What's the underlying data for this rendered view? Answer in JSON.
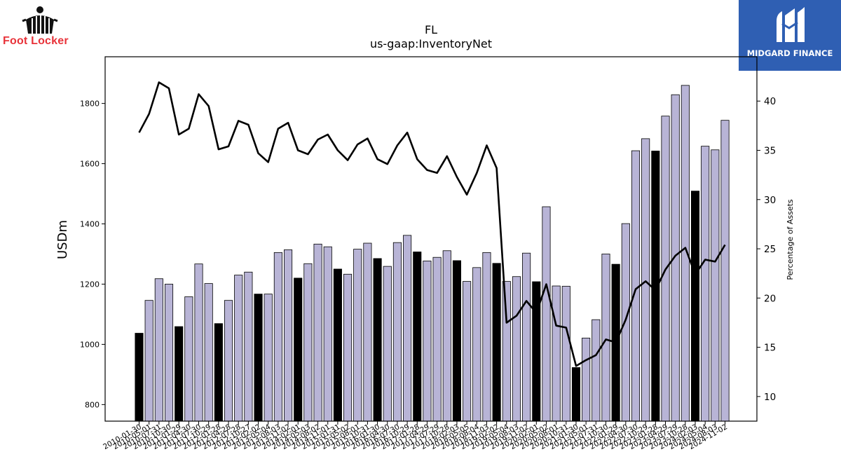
{
  "brand_left": {
    "name": "Foot Locker",
    "icon": "referee-figure-icon",
    "color": "#e8333a"
  },
  "brand_right": {
    "name": "MIDGARD FINANCE",
    "icon": "midgard-m-icon",
    "background": "#2f5fb3"
  },
  "chart_data": {
    "type": "bar",
    "title": "FL",
    "subtitle": "us-gaap:InventoryNet",
    "ylabel": "USDm",
    "y2label": "Percentage of Assets",
    "ylim": [
      745,
      1955
    ],
    "y2lim": [
      7.5,
      44.5
    ],
    "yticks": [
      800,
      1000,
      1200,
      1400,
      1600,
      1800
    ],
    "y2ticks": [
      10,
      15,
      20,
      25,
      30,
      35,
      40
    ],
    "grid": false,
    "colors": {
      "bar_default": "#b8b4d6",
      "bar_highlight": "#000000",
      "line": "#000000"
    },
    "categories": [
      "2010-01-30",
      "2010-05-01",
      "2010-07-31",
      "2010-10-30",
      "2011-01-29",
      "2011-04-30",
      "2011-07-30",
      "2011-10-29",
      "2012-01-28",
      "2012-04-28",
      "2012-07-28",
      "2012-10-27",
      "2013-02-02",
      "2013-05-04",
      "2013-08-03",
      "2013-11-02",
      "2014-02-01",
      "2014-05-03",
      "2014-08-02",
      "2014-11-01",
      "2015-01-31",
      "2015-05-02",
      "2015-08-01",
      "2015-10-31",
      "2016-01-30",
      "2016-04-30",
      "2016-07-30",
      "2016-10-29",
      "2017-01-28",
      "2017-04-29",
      "2017-07-29",
      "2017-10-28",
      "2018-02-03",
      "2018-05-05",
      "2018-08-04",
      "2018-11-03",
      "2019-02-02",
      "2019-05-04",
      "2019-08-03",
      "2019-11-02",
      "2020-02-01",
      "2020-05-02",
      "2020-08-01",
      "2020-10-31",
      "2021-01-30",
      "2021-05-01",
      "2021-07-31",
      "2021-10-30",
      "2022-01-29",
      "2022-04-30",
      "2022-07-30",
      "2022-10-29",
      "2023-01-28",
      "2023-04-29",
      "2023-07-29",
      "2023-10-28",
      "2024-02-03",
      "2024-05-04",
      "2024-08-03",
      "2024-11-02"
    ],
    "series": [
      {
        "values": [
          1037,
          1146,
          1218,
          1200,
          1059,
          1158,
          1267,
          1202,
          1069,
          1146,
          1230,
          1240,
          1167,
          1167,
          1305,
          1314,
          1220,
          1268,
          1333,
          1324,
          1250,
          1233,
          1316,
          1336,
          1285,
          1259,
          1338,
          1362,
          1307,
          1277,
          1289,
          1311,
          1278,
          1209,
          1255,
          1305,
          1269,
          1209,
          1225,
          1303,
          1208,
          1457,
          1194,
          1193,
          923,
          1021,
          1082,
          1300,
          1266,
          1401,
          1643,
          1683,
          1642,
          1758,
          1829,
          1860,
          1509,
          1658,
          1646,
          1744
        ],
        "highlight": [
          true,
          false,
          false,
          false,
          true,
          false,
          false,
          false,
          true,
          false,
          false,
          false,
          true,
          false,
          false,
          false,
          true,
          false,
          false,
          false,
          true,
          false,
          false,
          false,
          true,
          false,
          false,
          false,
          true,
          false,
          false,
          false,
          true,
          false,
          false,
          false,
          true,
          false,
          false,
          false,
          true,
          false,
          false,
          false,
          true,
          false,
          false,
          false,
          true,
          false,
          false,
          false,
          true,
          false,
          false,
          false,
          true,
          false,
          false,
          false
        ]
      },
      {
        "type": "line",
        "axis": "right",
        "values": [
          36.8,
          38.7,
          41.9,
          41.3,
          36.6,
          37.2,
          40.7,
          39.5,
          35.1,
          35.4,
          38.0,
          37.6,
          34.7,
          33.8,
          37.2,
          37.8,
          35.0,
          34.6,
          36.1,
          36.6,
          35.0,
          34.0,
          35.6,
          36.2,
          34.1,
          33.6,
          35.5,
          36.8,
          34.1,
          33.0,
          32.7,
          34.4,
          32.3,
          30.5,
          32.7,
          35.5,
          33.2,
          17.5,
          18.2,
          19.7,
          18.5,
          21.4,
          17.2,
          17.0,
          13.1,
          13.7,
          14.2,
          15.8,
          15.5,
          17.8,
          20.9,
          21.7,
          20.8,
          22.9,
          24.3,
          25.1,
          22.4,
          23.9,
          23.7,
          25.4
        ]
      }
    ]
  }
}
